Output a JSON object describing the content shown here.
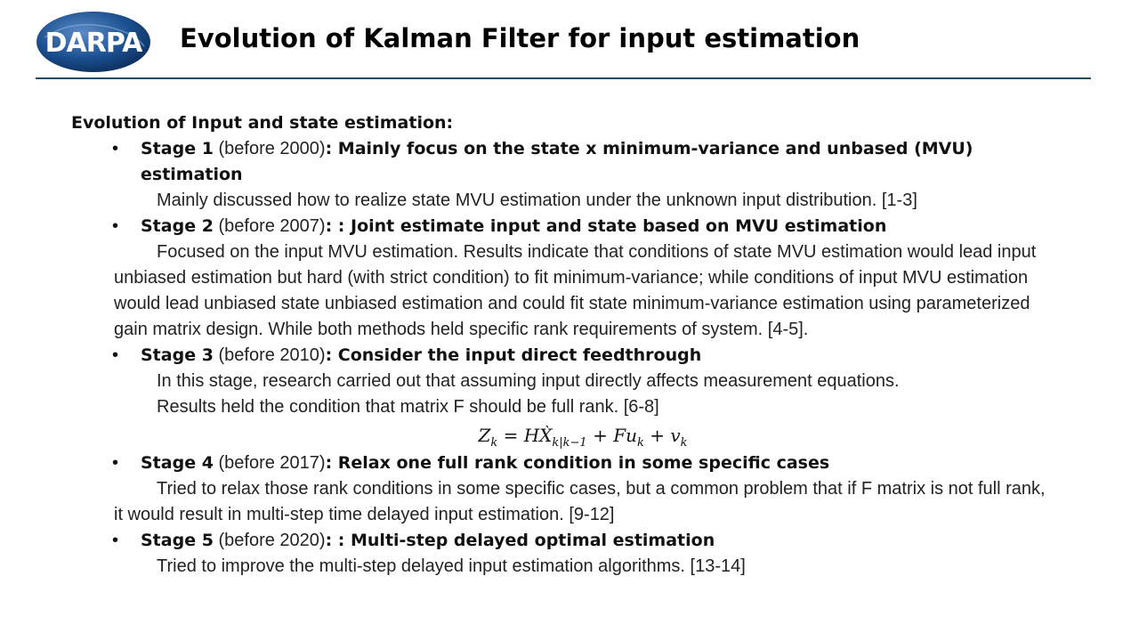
{
  "logo": {
    "text": "DARPA",
    "colors": {
      "globe": "#1b4f8f",
      "text": "#ffffff"
    }
  },
  "title": "Evolution of Kalman Filter for input estimation",
  "section_heading": "Evolution of Input and state estimation:",
  "stages": [
    {
      "label": "Stage 1",
      "date": " (before 2000)",
      "sep": ": ",
      "desc": "Mainly focus on the state x minimum-variance and unbased (MVU) estimation",
      "body_indent": [
        "Mainly discussed how to realize state MVU estimation under the unknown input distribution. [1-3]"
      ]
    },
    {
      "label": "Stage 2",
      "date": " (before 2007)",
      "sep": ": : ",
      "desc": "Joint estimate input and state based on MVU estimation",
      "body_para": "Focused on the input MVU estimation. Results indicate that conditions of state MVU estimation would lead input unbiased estimation but hard (with strict condition) to fit minimum-variance; while conditions of input MVU estimation would lead unbiased state unbiased estimation and could fit state minimum-variance estimation using parameterized gain matrix design. While both methods held specific rank requirements of system. [4-5]."
    },
    {
      "label": "Stage 3",
      "date": " (before 2010)",
      "sep": ": ",
      "desc": "Consider the input direct feedthrough",
      "body_indent": [
        "In this stage, research carried out that assuming input directly affects measurement equations.",
        "Results held the condition that matrix F should be full rank. [6-8]"
      ]
    },
    {
      "label": "Stage 4",
      "date": " (before 2017)",
      "sep": ": ",
      "desc": "Relax one full rank condition in some specific cases",
      "body_para": "Tried to relax those rank conditions in some specific cases, but a common problem that if F matrix is not full rank, it would result in multi-step time delayed input estimation. [9-12]"
    },
    {
      "label": "Stage 5",
      "date": " (before 2020)",
      "sep": ": : ",
      "desc": "Multi-step delayed optimal estimation",
      "body_indent": [
        "Tried to improve the multi-step delayed input estimation algorithms. [13-14]"
      ]
    }
  ],
  "equation": {
    "lhs": "Z",
    "lhs_sub": "k",
    "eq": " = ",
    "h": "HX̀",
    "h_sub": "k|k−1",
    "plus1": " + ",
    "f": "Fu",
    "f_sub": "k",
    "plus2": " + ",
    "v": "v",
    "v_sub": "k"
  }
}
